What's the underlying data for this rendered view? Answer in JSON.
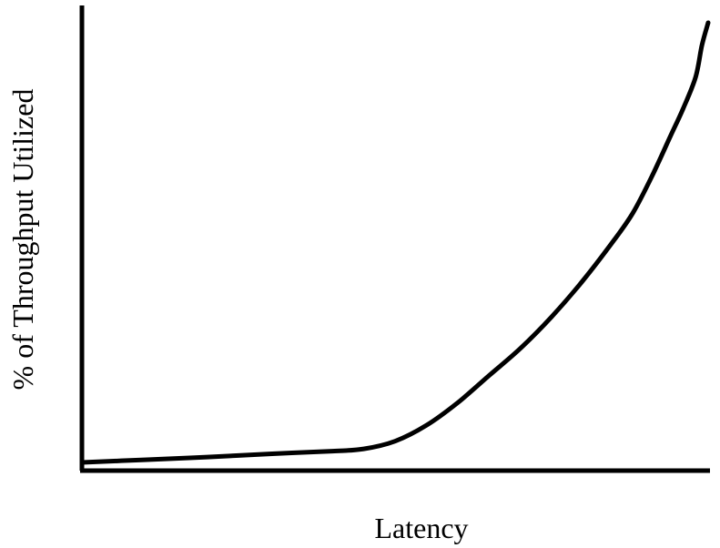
{
  "chart_data": {
    "type": "line",
    "title": "",
    "xlabel": "Latency",
    "ylabel": "% of Throughput Utilized",
    "grid": false,
    "legend": "none",
    "ticks": "none",
    "xlim": [
      0,
      100
    ],
    "ylim": [
      0,
      100
    ],
    "series": [
      {
        "color": "#000000",
        "x": [
          0,
          10,
          20,
          30,
          40,
          45,
          50,
          55,
          60,
          65,
          70,
          75,
          80,
          85,
          88,
          91,
          94,
          96,
          98,
          99,
          100
        ],
        "y": [
          1.8,
          2.4,
          3,
          3.7,
          4.3,
          4.8,
          6.5,
          10,
          15,
          21,
          27,
          34,
          42,
          51,
          57,
          65,
          74,
          80,
          87,
          94,
          99
        ]
      }
    ]
  }
}
